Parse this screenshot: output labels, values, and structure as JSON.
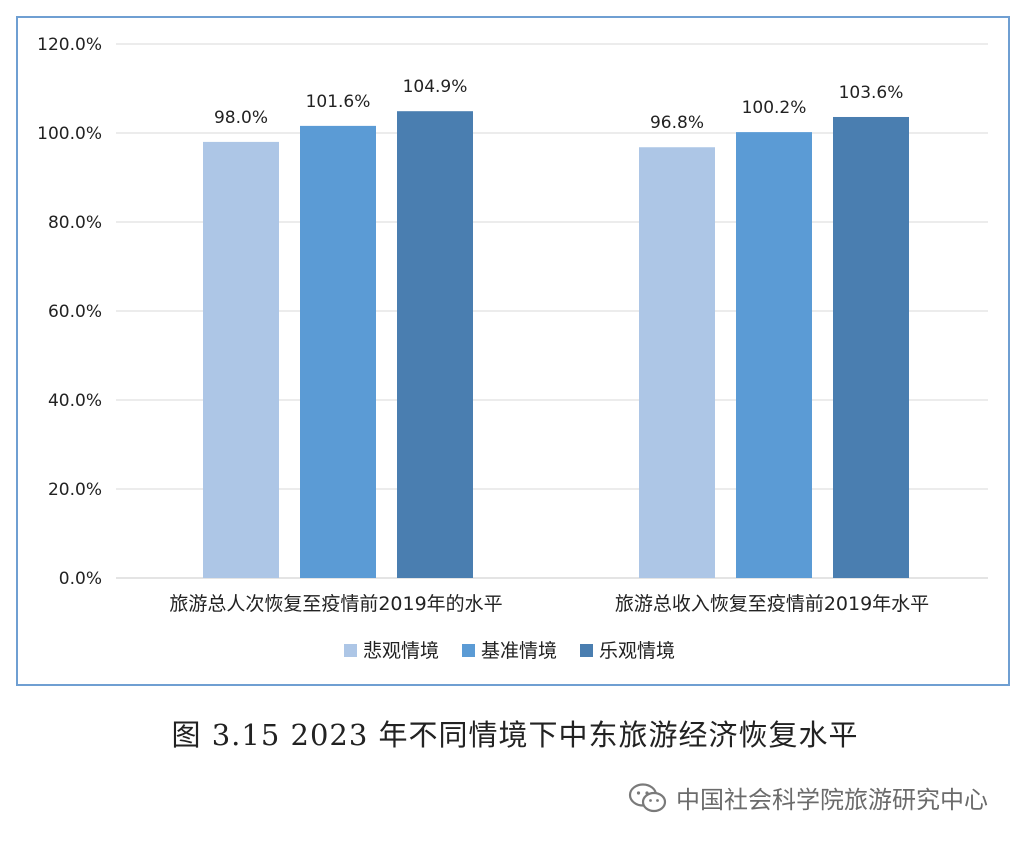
{
  "chart_data": {
    "type": "bar",
    "categories": [
      "旅游总人次恢复至疫情前2019年的水平",
      "旅游总收入恢复至疫情前2019年水平"
    ],
    "series": [
      {
        "name": "悲观情境",
        "values": [
          98.0,
          96.8
        ],
        "labels": [
          "98.0%",
          "96.8%"
        ]
      },
      {
        "name": "基准情境",
        "values": [
          101.6,
          100.2
        ],
        "labels": [
          "101.6%",
          "100.2%"
        ]
      },
      {
        "name": "乐观情境",
        "values": [
          104.9,
          103.6
        ],
        "labels": [
          "104.9%",
          "103.6%"
        ]
      }
    ],
    "ylim": [
      0,
      120
    ],
    "yticks": [
      "0.0%",
      "20.0%",
      "40.0%",
      "60.0%",
      "80.0%",
      "100.0%",
      "120.0%"
    ],
    "grid": true,
    "legend": "bottom",
    "colors": [
      "#adc6e6",
      "#5b9bd5",
      "#4a7eb0"
    ]
  },
  "caption": "图 3.15 2023 年不同情境下中东旅游经济恢复水平",
  "watermark": {
    "icon": "wechat-icon",
    "text": "中国社会科学院旅游研究中心"
  }
}
